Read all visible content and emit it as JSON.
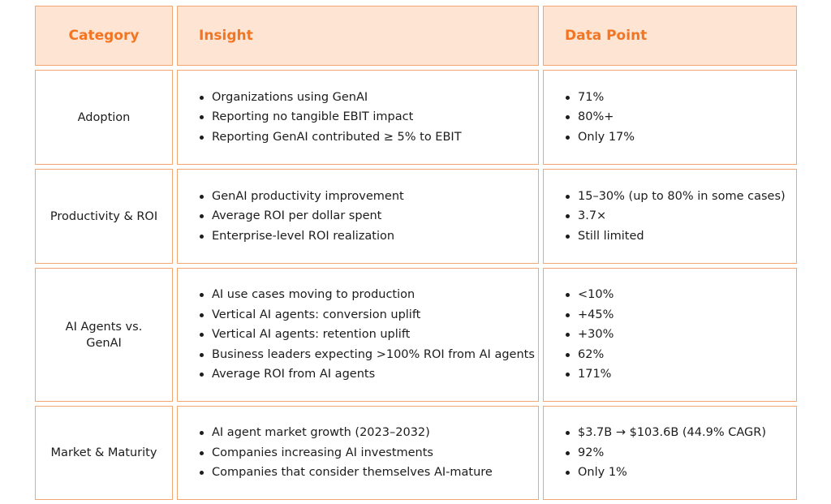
{
  "headers": {
    "category": "Category",
    "insight": "Insight",
    "data_point": "Data Point"
  },
  "rows": [
    {
      "category": "Adoption",
      "insights": [
        "Organizations using GenAI",
        "Reporting no tangible EBIT impact",
        "Reporting GenAI contributed ≥ 5% to EBIT"
      ],
      "data_points": [
        "71%",
        "80%+",
        "Only 17%"
      ]
    },
    {
      "category": "Productivity & ROI",
      "insights": [
        "GenAI productivity improvement",
        "Average ROI per dollar spent",
        "Enterprise-level ROI realization"
      ],
      "data_points": [
        "15–30% (up to 80% in some cases)",
        "3.7×",
        "Still limited"
      ]
    },
    {
      "category": "AI Agents vs. GenAI",
      "insights": [
        "AI use cases moving to production",
        "Vertical AI agents: conversion uplift",
        "Vertical AI agents: retention uplift",
        "Business leaders expecting >100% ROI from AI agents",
        "Average ROI from AI agents"
      ],
      "data_points": [
        "<10%",
        "+45%",
        "+30%",
        "62%",
        "171%"
      ]
    },
    {
      "category": "Market & Maturity",
      "insights": [
        "AI agent market growth (2023–2032)",
        "Companies increasing AI investments",
        "Companies that consider themselves AI-mature"
      ],
      "data_points": [
        "$3.7B → $103.6B (44.9% CAGR)",
        "92%",
        "Only 1%"
      ]
    }
  ],
  "colors": {
    "header_text": "#f47521",
    "header_bg": "#fde4d3",
    "border": "#f2a772"
  }
}
